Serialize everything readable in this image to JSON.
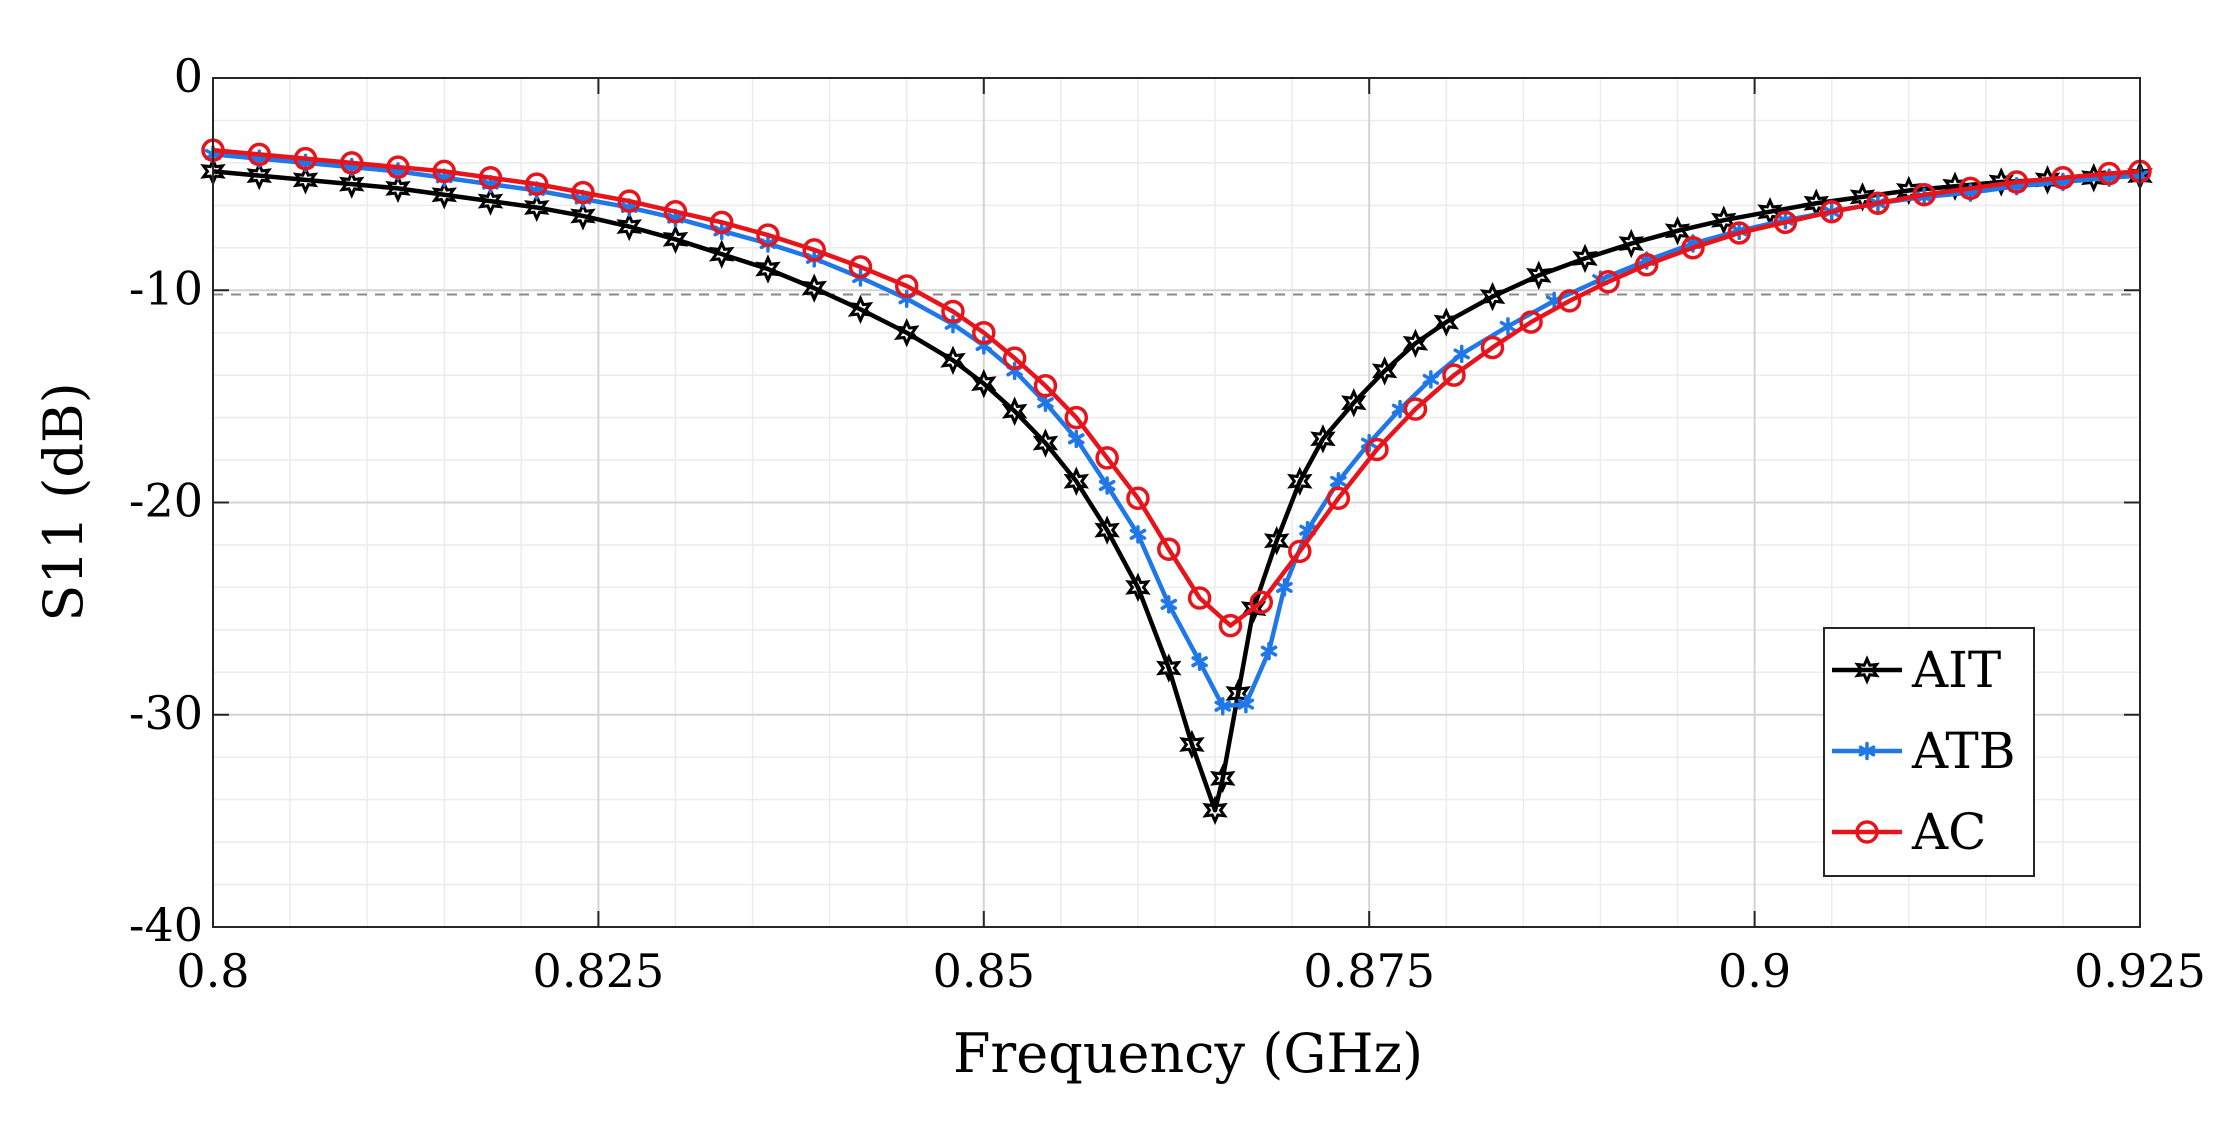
{
  "chart_data": {
    "type": "line",
    "title": "",
    "xlabel": "Frequency (GHz)",
    "ylabel": "S11 (dB)",
    "xlim": [
      0.8,
      0.925
    ],
    "ylim": [
      -40,
      0
    ],
    "x_ticks": [
      0.8,
      0.825,
      0.85,
      0.875,
      0.9,
      0.925
    ],
    "x_tick_labels": [
      "0.8",
      "0.825",
      "0.85",
      "0.875",
      "0.9",
      "0.925"
    ],
    "y_ticks": [
      0,
      -10,
      -20,
      -30,
      -40
    ],
    "y_tick_labels": [
      "0",
      "-10",
      "-20",
      "-30",
      "-40"
    ],
    "grid": true,
    "legend_position": "bottom-right",
    "reference_line": {
      "y": -10.2,
      "style": "dashed",
      "color": "#888888"
    },
    "series": [
      {
        "name": "AIT",
        "color": "#000000",
        "marker": "hexagram",
        "x": [
          0.8,
          0.803,
          0.806,
          0.809,
          0.812,
          0.815,
          0.818,
          0.821,
          0.824,
          0.827,
          0.83,
          0.833,
          0.836,
          0.839,
          0.842,
          0.845,
          0.848,
          0.85,
          0.852,
          0.854,
          0.856,
          0.858,
          0.86,
          0.862,
          0.8635,
          0.865,
          0.8655,
          0.8665,
          0.8675,
          0.869,
          0.8705,
          0.872,
          0.874,
          0.876,
          0.878,
          0.88,
          0.883,
          0.886,
          0.889,
          0.892,
          0.895,
          0.898,
          0.901,
          0.904,
          0.907,
          0.91,
          0.913,
          0.916,
          0.919,
          0.922,
          0.925
        ],
        "y": [
          -4.4,
          -4.6,
          -4.8,
          -5.0,
          -5.2,
          -5.5,
          -5.8,
          -6.1,
          -6.5,
          -7.0,
          -7.6,
          -8.3,
          -9.0,
          -9.9,
          -10.9,
          -12.0,
          -13.3,
          -14.4,
          -15.7,
          -17.2,
          -19.0,
          -21.3,
          -24.0,
          -27.8,
          -31.4,
          -34.5,
          -33.0,
          -29.0,
          -25.0,
          -21.8,
          -19.0,
          -17.0,
          -15.3,
          -13.8,
          -12.5,
          -11.5,
          -10.3,
          -9.3,
          -8.5,
          -7.8,
          -7.2,
          -6.7,
          -6.3,
          -5.9,
          -5.6,
          -5.3,
          -5.1,
          -4.9,
          -4.8,
          -4.7,
          -4.6
        ]
      },
      {
        "name": "ATB",
        "color": "#1f77e8",
        "marker": "asterisk",
        "x": [
          0.8,
          0.803,
          0.806,
          0.809,
          0.812,
          0.815,
          0.818,
          0.821,
          0.824,
          0.827,
          0.83,
          0.833,
          0.836,
          0.839,
          0.842,
          0.845,
          0.848,
          0.85,
          0.852,
          0.854,
          0.856,
          0.858,
          0.86,
          0.862,
          0.864,
          0.8655,
          0.867,
          0.8685,
          0.8695,
          0.871,
          0.873,
          0.875,
          0.877,
          0.879,
          0.881,
          0.884,
          0.887,
          0.89,
          0.893,
          0.896,
          0.899,
          0.902,
          0.905,
          0.908,
          0.911,
          0.914,
          0.917,
          0.92,
          0.923,
          0.925
        ],
        "y": [
          -3.6,
          -3.8,
          -4.0,
          -4.2,
          -4.4,
          -4.7,
          -5.0,
          -5.3,
          -5.7,
          -6.1,
          -6.6,
          -7.2,
          -7.8,
          -8.5,
          -9.4,
          -10.4,
          -11.6,
          -12.6,
          -13.8,
          -15.3,
          -17.0,
          -19.2,
          -21.5,
          -24.8,
          -27.5,
          -29.6,
          -29.5,
          -27.0,
          -24.0,
          -21.3,
          -19.0,
          -17.2,
          -15.6,
          -14.2,
          -13.0,
          -11.7,
          -10.5,
          -9.5,
          -8.6,
          -7.8,
          -7.2,
          -6.7,
          -6.3,
          -5.9,
          -5.6,
          -5.4,
          -5.1,
          -4.9,
          -4.7,
          -4.6
        ]
      },
      {
        "name": "AC",
        "color": "#e8141c",
        "marker": "circle",
        "x": [
          0.8,
          0.803,
          0.806,
          0.809,
          0.812,
          0.815,
          0.818,
          0.821,
          0.824,
          0.827,
          0.83,
          0.833,
          0.836,
          0.839,
          0.842,
          0.845,
          0.848,
          0.85,
          0.852,
          0.854,
          0.856,
          0.858,
          0.86,
          0.862,
          0.864,
          0.866,
          0.868,
          0.8705,
          0.873,
          0.8755,
          0.878,
          0.8805,
          0.883,
          0.8855,
          0.888,
          0.8905,
          0.893,
          0.896,
          0.899,
          0.902,
          0.905,
          0.908,
          0.911,
          0.914,
          0.917,
          0.92,
          0.923,
          0.925
        ],
        "y": [
          -3.4,
          -3.6,
          -3.8,
          -4.0,
          -4.2,
          -4.4,
          -4.7,
          -5.0,
          -5.4,
          -5.8,
          -6.3,
          -6.8,
          -7.4,
          -8.1,
          -8.9,
          -9.8,
          -11.0,
          -12.0,
          -13.2,
          -14.5,
          -16.0,
          -17.9,
          -19.8,
          -22.2,
          -24.5,
          -25.8,
          -24.7,
          -22.3,
          -19.8,
          -17.5,
          -15.6,
          -14.0,
          -12.7,
          -11.5,
          -10.5,
          -9.6,
          -8.8,
          -8.0,
          -7.3,
          -6.8,
          -6.3,
          -5.9,
          -5.5,
          -5.2,
          -4.9,
          -4.7,
          -4.5,
          -4.4
        ]
      }
    ]
  }
}
